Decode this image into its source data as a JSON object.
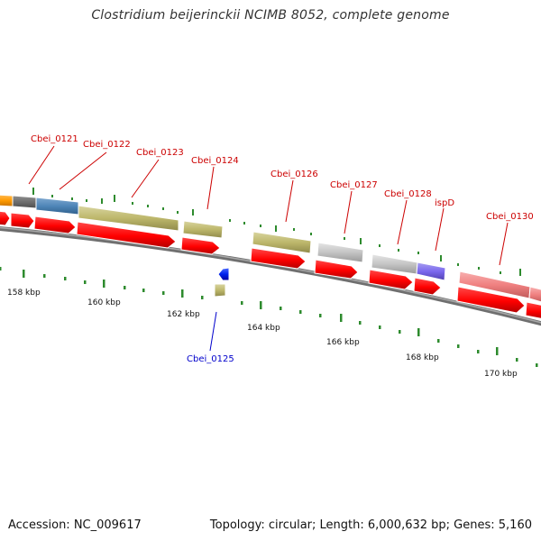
{
  "title": "Clostridium beijerinckii NCIMB 8052, complete genome",
  "footer": {
    "accession": "Accession: NC_009617",
    "summary": "Topology: circular; Length: 6,000,632 bp; Genes: 5,160"
  },
  "colors": {
    "cds_arrow": "#ff0000",
    "label_forward": "#cc0000",
    "label_reverse": "#0000cc",
    "tick": "#2e8b2e",
    "backbone": "#777777"
  },
  "scale_ticks": [
    {
      "label": "158 kbp"
    },
    {
      "label": "160 kbp"
    },
    {
      "label": "162 kbp"
    },
    {
      "label": "164 kbp"
    },
    {
      "label": "166 kbp"
    },
    {
      "label": "168 kbp"
    },
    {
      "label": "170 kbp"
    }
  ],
  "gene_labels": [
    {
      "name": "Cbei_0121",
      "strand": "forward"
    },
    {
      "name": "Cbei_0122",
      "strand": "forward"
    },
    {
      "name": "Cbei_0123",
      "strand": "forward"
    },
    {
      "name": "Cbei_0124",
      "strand": "forward"
    },
    {
      "name": "Cbei_0125",
      "strand": "reverse"
    },
    {
      "name": "Cbei_0126",
      "strand": "forward"
    },
    {
      "name": "Cbei_0127",
      "strand": "forward"
    },
    {
      "name": "Cbei_0128",
      "strand": "forward"
    },
    {
      "name": "ispD",
      "strand": "forward"
    },
    {
      "name": "Cbei_0130",
      "strand": "forward"
    }
  ]
}
